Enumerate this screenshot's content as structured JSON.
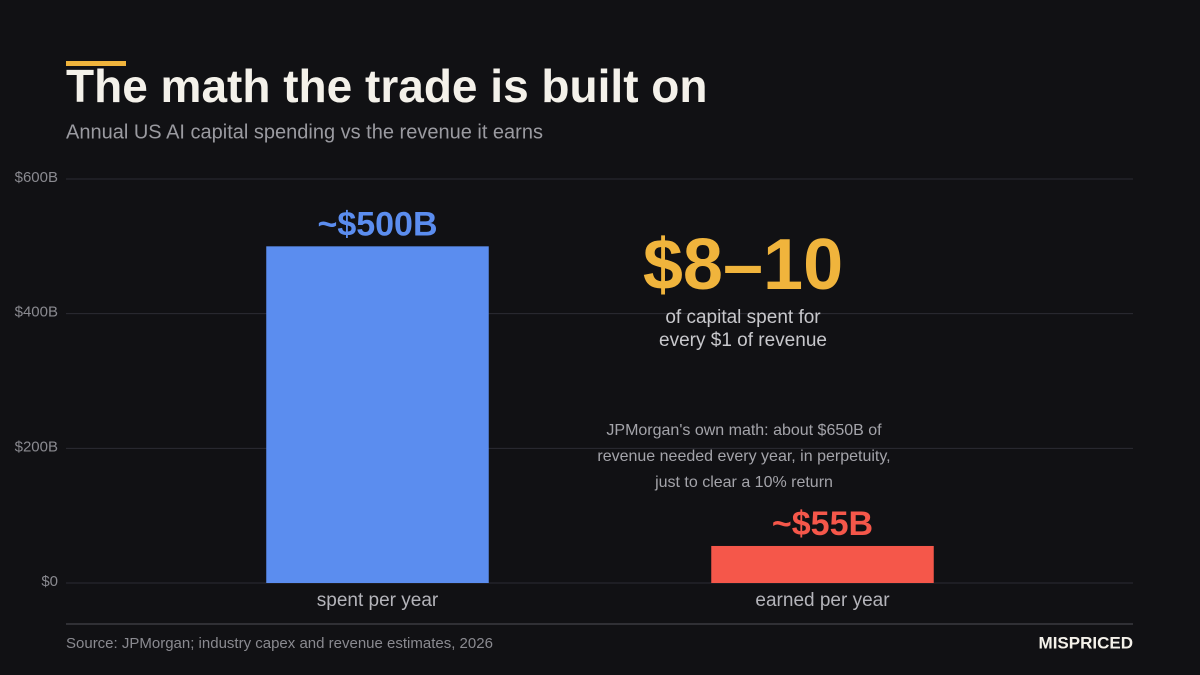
{
  "chart_data": {
    "type": "bar",
    "title": "The math the trade is built on",
    "subtitle": "Annual US AI capital spending vs the revenue it earns",
    "categories": [
      "spent per year",
      "earned per year"
    ],
    "values": [
      500,
      55
    ],
    "value_labels": [
      "~$500B",
      "~$55B"
    ],
    "colors": [
      "#5b8def",
      "#f5574a"
    ],
    "ylim": [
      0,
      600
    ],
    "yticks": [
      {
        "value": 0,
        "label": "$0"
      },
      {
        "value": 200,
        "label": "$200B"
      },
      {
        "value": 400,
        "label": "$400B"
      },
      {
        "value": 600,
        "label": "$600B"
      }
    ],
    "grid": true,
    "callout": {
      "headline": "$8–10",
      "lines": [
        "of capital spent for",
        "every $1 of revenue"
      ]
    },
    "note": [
      "JPMorgan's own math: about $650B of",
      "revenue needed every year, in perpetuity,",
      "just to clear a 10% return"
    ],
    "source": "Source: JPMorgan; industry capex and revenue estimates, 2026",
    "brand": "MISPRICED"
  }
}
